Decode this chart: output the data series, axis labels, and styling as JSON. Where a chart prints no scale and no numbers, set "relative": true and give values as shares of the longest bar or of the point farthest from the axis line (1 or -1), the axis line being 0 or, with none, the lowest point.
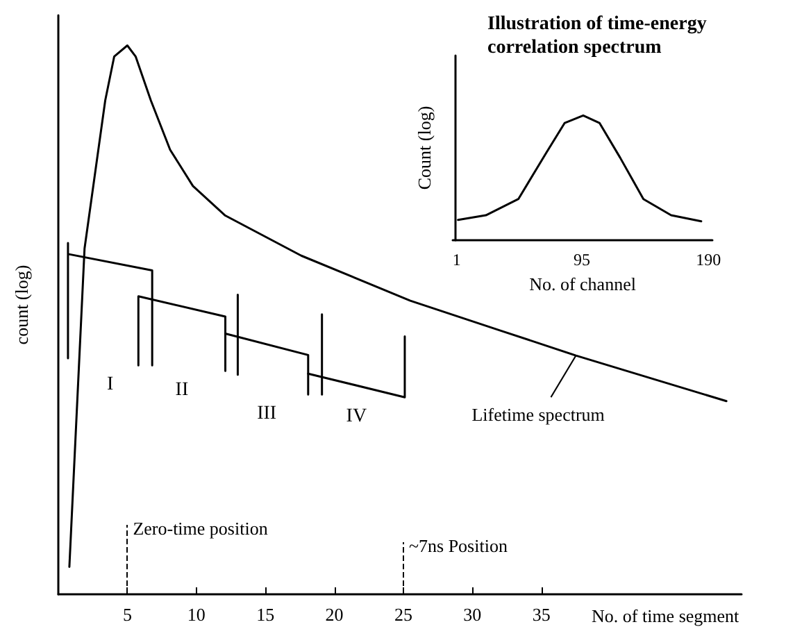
{
  "chart_data": [
    {
      "type": "line",
      "relative": true,
      "xlabel": "No. of time segment",
      "ylabel": "count (log)",
      "xlim": [
        0,
        49.5
      ],
      "xticks": [
        5,
        10,
        15,
        20,
        25,
        30,
        35
      ],
      "series": [
        {
          "color": "#000000",
          "x": [
            0.8,
            1.9,
            3.4,
            4.05,
            5.0,
            5.6,
            6.7,
            8.1,
            9.75,
            12.1,
            17.6,
            25.5,
            32.1,
            37.5,
            48.4
          ],
          "values": [
            0.05,
            0.63,
            0.9,
            0.98,
            1.0,
            0.98,
            0.9,
            0.81,
            0.744,
            0.69,
            0.617,
            0.535,
            0.48,
            0.435,
            0.352
          ]
        },
        {
          "color": "#000000",
          "x": [
            0.7,
            0.7,
            0.7,
            6.8,
            6.8
          ],
          "values": [
            0.43,
            0.64,
            0.62,
            0.59,
            0.417
          ]
        },
        {
          "color": "#000000",
          "x": [
            5.8,
            5.8,
            12.1,
            12.1
          ],
          "values": [
            0.417,
            0.543,
            0.506,
            0.407
          ]
        },
        {
          "color": "#000000",
          "x": [
            12.1,
            18.1,
            18.1
          ],
          "values": [
            0.475,
            0.436,
            0.364
          ]
        },
        {
          "color": "#000000",
          "x": [
            18.1,
            25.1,
            25.1
          ],
          "values": [
            0.402,
            0.359,
            0.47
          ]
        },
        {
          "color": "#000000",
          "x": [
            13.0,
            13.0
          ],
          "values": [
            0.4,
            0.546
          ]
        },
        {
          "color": "#000000",
          "x": [
            19.1,
            19.1
          ],
          "values": [
            0.364,
            0.51
          ]
        }
      ],
      "ref_lines": [
        {
          "axis": "x",
          "value": 5,
          "label": "Zero-time position",
          "line_style": "dashed"
        },
        {
          "axis": "x",
          "value": 25,
          "label": "~7ns Position",
          "line_style": "dashed"
        }
      ],
      "annotations": [
        "I",
        "II",
        "III",
        "IV",
        {
          "text": "Lifetime spectrum",
          "x": 37.5,
          "y": 0.435
        }
      ],
      "grid": false,
      "marker": "none",
      "line_style": "solid"
    },
    {
      "type": "line",
      "relative": true,
      "title": "Illustration of time-energy correlation spectrum",
      "xlabel": "No. of channel",
      "ylabel": "Count (log)",
      "xlim": [
        -2,
        193
      ],
      "xticks": [
        1,
        95,
        190
      ],
      "series": [
        {
          "color": "#000000",
          "x": [
            2,
            22.9,
            47.3,
            68.2,
            82.1,
            96,
            108.2,
            123.8,
            141.2,
            162,
            184.6
          ],
          "values": [
            0.163,
            0.2,
            0.33,
            0.7,
            0.94,
            1.0,
            0.94,
            0.66,
            0.33,
            0.2,
            0.152
          ]
        }
      ],
      "grid": false,
      "marker": "none",
      "line_style": "solid"
    }
  ]
}
